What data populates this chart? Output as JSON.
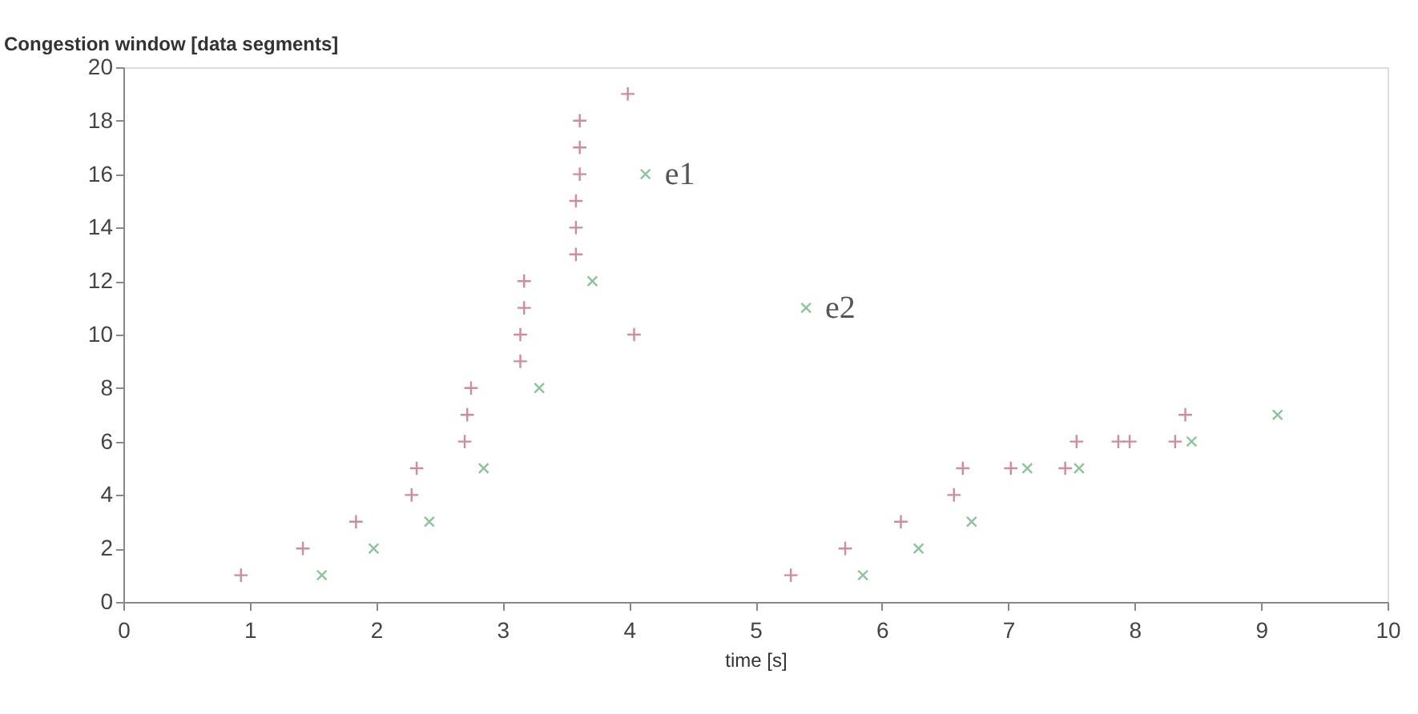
{
  "chart_data": {
    "type": "scatter",
    "xlabel": "time [s]",
    "ylabel": "Congestion window [data segments]",
    "xlim": [
      0,
      10
    ],
    "xticks": [
      0,
      1,
      2,
      3,
      4,
      5,
      6,
      7,
      8,
      9,
      10
    ],
    "ylim": [
      0,
      20
    ],
    "yticks": [
      0,
      2,
      4,
      6,
      8,
      10,
      12,
      14,
      16,
      18,
      20
    ],
    "grid": false,
    "series": [
      {
        "color": "#d08c9a",
        "marker": "cross",
        "x": [
          0.93,
          1.42,
          1.84,
          2.28,
          2.32,
          2.7,
          2.72,
          2.75,
          3.14,
          3.14,
          3.17,
          3.17,
          3.58,
          3.58,
          3.58,
          3.61,
          3.61,
          3.61,
          3.99,
          4.04,
          5.28,
          5.71,
          6.15,
          6.57,
          6.64,
          7.02,
          7.45,
          7.54,
          7.87,
          7.96,
          8.32,
          8.4
        ],
        "values": [
          1,
          2,
          3,
          4,
          5,
          6,
          7,
          8,
          9,
          10,
          11,
          12,
          13,
          14,
          15,
          16,
          17,
          18,
          19,
          10,
          1,
          2,
          3,
          4,
          5,
          5,
          5,
          6,
          6,
          6,
          6,
          7
        ]
      },
      {
        "color": "#8cc49a",
        "marker": "x",
        "x": [
          1.57,
          1.98,
          2.42,
          2.85,
          3.29,
          3.71,
          4.13,
          5.4,
          5.85,
          6.29,
          6.71,
          7.15,
          7.56,
          8.45,
          9.13
        ],
        "values": [
          1,
          2,
          3,
          5,
          8,
          12,
          16,
          11,
          1,
          2,
          3,
          5,
          5,
          6,
          7
        ]
      }
    ],
    "annotations": [
      {
        "text": "e1",
        "x": 4.13,
        "y": 16
      },
      {
        "text": "e2",
        "x": 5.4,
        "y": 11
      }
    ]
  }
}
